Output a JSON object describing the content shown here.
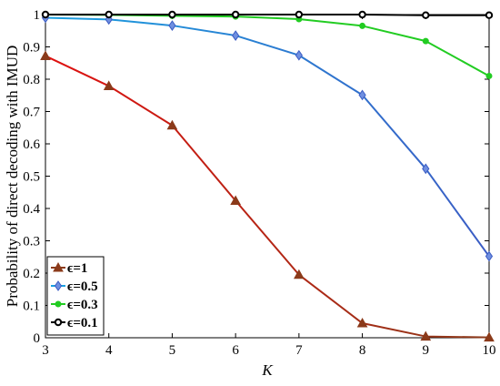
{
  "chart_data": {
    "type": "line",
    "title": "",
    "xlabel": "K",
    "ylabel": "Probability of direct decoding with IMUD",
    "xlim": [
      3,
      10
    ],
    "ylim": [
      0,
      1
    ],
    "x": [
      3,
      4,
      5,
      6,
      7,
      8,
      9,
      10
    ],
    "x_ticks": [
      "3",
      "4",
      "5",
      "6",
      "7",
      "8",
      "9",
      "10"
    ],
    "y_ticks": [
      "0",
      "0.1",
      "0.2",
      "0.3",
      "0.4",
      "0.5",
      "0.6",
      "0.7",
      "0.8",
      "0.9",
      "1"
    ],
    "grid": false,
    "legend_position": "bottom-left",
    "series": [
      {
        "name": "ϵ=1",
        "marker": "triangle",
        "color": "#e01010",
        "color_end": "#8b3a1a",
        "values": [
          0.872,
          0.779,
          0.657,
          0.424,
          0.195,
          0.045,
          0.004,
          0.001
        ]
      },
      {
        "name": "ϵ=0.5",
        "marker": "diamond",
        "color": "#1aa0e0",
        "color_end": "#3b5cc4",
        "values": [
          0.99,
          0.985,
          0.966,
          0.935,
          0.874,
          0.751,
          0.523,
          0.252
        ]
      },
      {
        "name": "ϵ=0.3",
        "marker": "circle",
        "color": "#22cc22",
        "color_end": "#22cc22",
        "values": [
          1.0,
          0.999,
          0.996,
          0.994,
          0.986,
          0.965,
          0.918,
          0.81
        ]
      },
      {
        "name": "ϵ=0.1",
        "marker": "circle-open",
        "color": "#000000",
        "color_end": "#000000",
        "values": [
          1.0,
          1.0,
          1.0,
          1.0,
          1.0,
          1.0,
          0.998,
          0.998
        ]
      }
    ]
  }
}
